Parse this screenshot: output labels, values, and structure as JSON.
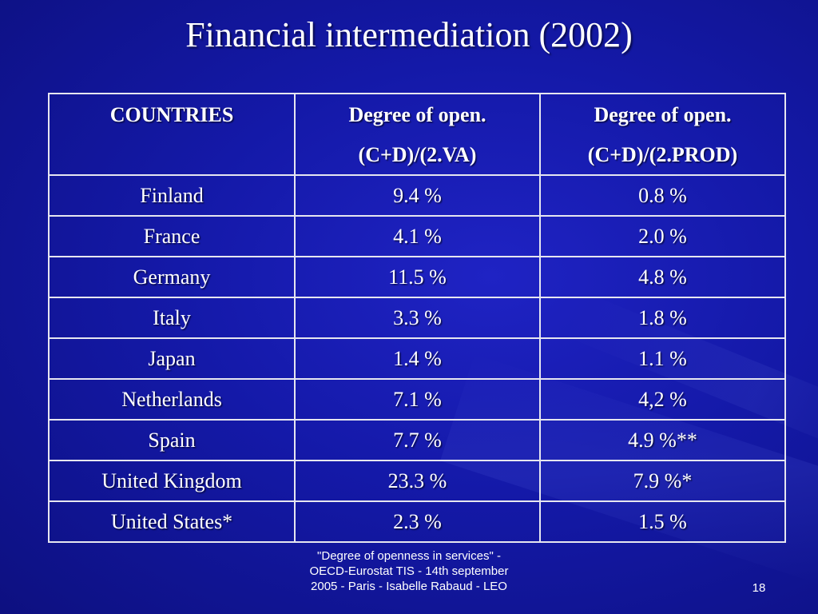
{
  "slide": {
    "title": "Financial intermediation (2002)",
    "table": {
      "headers": [
        {
          "line1": "COUNTRIES",
          "line2": ""
        },
        {
          "line1": "Degree of open.",
          "line2": "(C+D)/(2.VA)"
        },
        {
          "line1": "Degree of open.",
          "line2": "(C+D)/(2.PROD)"
        }
      ],
      "rows": [
        {
          "country": "Finland",
          "va": "9.4 %",
          "prod": "0.8 %"
        },
        {
          "country": "France",
          "va": "4.1 %",
          "prod": "2.0 %"
        },
        {
          "country": "Germany",
          "va": "11.5 %",
          "prod": "4.8 %"
        },
        {
          "country": "Italy",
          "va": "3.3 %",
          "prod": "1.8 %"
        },
        {
          "country": "Japan",
          "va": "1.4 %",
          "prod": "1.1 %"
        },
        {
          "country": "Netherlands",
          "va": "7.1 %",
          "prod": "4,2 %"
        },
        {
          "country": "Spain",
          "va": "7.7 %",
          "prod": "4.9 %**"
        },
        {
          "country": "United Kingdom",
          "va": "23.3 %",
          "prod": "7.9 %*"
        },
        {
          "country": "United States*",
          "va": "2.3 %",
          "prod": "1.5 %"
        }
      ]
    },
    "footer": {
      "line1": "\"Degree of openness in services\" -",
      "line2": "OECD-Eurostat  TIS - 14th september",
      "line3": "2005 - Paris - Isabelle Rabaud  - LEO"
    },
    "page_number": "18"
  },
  "colors": {
    "background": "#1419a8",
    "text": "#ffffff",
    "table_border": "#e6e6f0"
  }
}
